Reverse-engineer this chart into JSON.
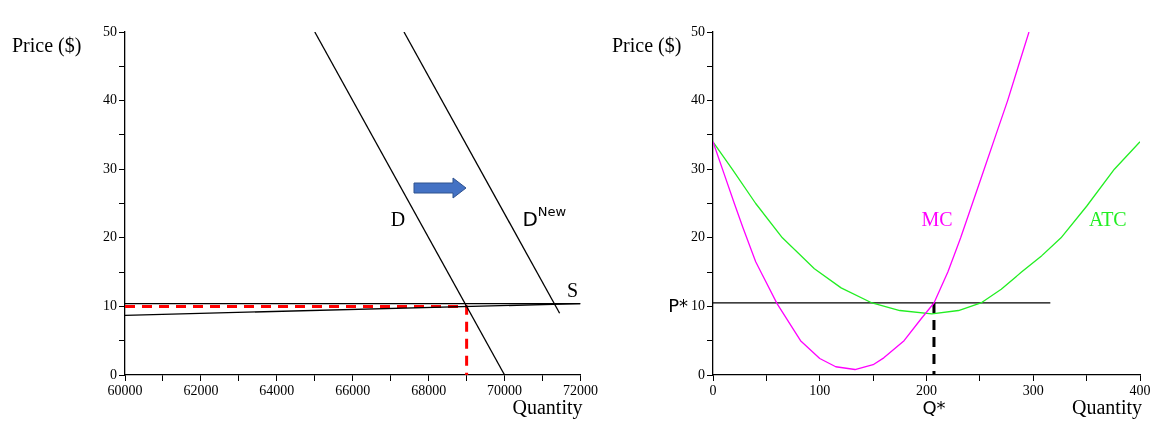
{
  "chart_data": [
    {
      "type": "line",
      "xlabel": "Quantity",
      "ylabel": "Price ($)",
      "marker": "none",
      "xlim": [
        60000,
        72000
      ],
      "ylim": [
        0,
        50
      ],
      "xticks": [
        60000,
        {
          "value": 61000,
          "label": null
        },
        62000,
        {
          "value": 63000,
          "label": null
        },
        64000,
        {
          "value": 65000,
          "label": null
        },
        66000,
        {
          "value": 67000,
          "label": null
        },
        68000,
        {
          "value": 69000,
          "label": null
        },
        70000,
        {
          "value": 71000,
          "label": null
        },
        72000
      ],
      "yticks": [
        0,
        {
          "value": 5,
          "label": null
        },
        10,
        {
          "value": 15,
          "label": null
        },
        20,
        {
          "value": 25,
          "label": null
        },
        30,
        {
          "value": 35,
          "label": null
        },
        40,
        {
          "value": 45,
          "label": null
        },
        50
      ],
      "series": [
        {
          "name": "D",
          "color": "#000000",
          "x": [
            65000,
            70000
          ],
          "values": [
            50,
            0
          ]
        },
        {
          "name": "D$^{New}$",
          "color": "#000000",
          "x": [
            67350,
            71450
          ],
          "values": [
            50,
            9
          ]
        },
        {
          "name": "S",
          "color": "#000000",
          "x": [
            60000,
            72000
          ],
          "values": [
            8.7,
            10.4
          ]
        },
        {
          "color": "#000000",
          "x": [
            60000,
            72000
          ],
          "values": [
            10.4,
            10.4
          ]
        },
        {
          "color": "#ff0000",
          "line_style": "dashed",
          "x": [
            60000,
            69000,
            69000
          ],
          "values": [
            10,
            10,
            0
          ]
        }
      ]
    },
    {
      "type": "line",
      "xlabel": "Quantity",
      "ylabel": "Price ($)",
      "marker": "none",
      "xlim": [
        0,
        400
      ],
      "ylim": [
        0,
        50
      ],
      "xticks": [
        0,
        {
          "value": 50,
          "label": null
        },
        100,
        {
          "value": 150,
          "label": null
        },
        200,
        {
          "value": 250,
          "label": null
        },
        300,
        {
          "value": 350,
          "label": null
        },
        400
      ],
      "yticks": [
        0,
        {
          "value": 5,
          "label": null
        },
        10,
        {
          "value": 15,
          "label": null
        },
        20,
        {
          "value": 25,
          "label": null
        },
        30,
        {
          "value": 35,
          "label": null
        },
        40,
        {
          "value": 45,
          "label": null
        },
        50
      ],
      "series": [
        {
          "name": "MC",
          "color": "#ff00ff",
          "x": [
            0,
            10,
            20,
            28,
            40,
            60,
            82,
            100,
            115,
            133,
            150,
            160,
            179,
            195,
            207,
            220,
            232,
            243,
            254,
            265,
            276,
            286,
            296
          ],
          "values": [
            34,
            29.5,
            25,
            21.5,
            16.5,
            10.4,
            5,
            2.4,
            1.2,
            0.8,
            1.5,
            2.5,
            5,
            8.2,
            10.5,
            15,
            20,
            25,
            30,
            35,
            40,
            45,
            50
          ]
        },
        {
          "name": "ATC",
          "color": "#22ee22",
          "x": [
            0,
            18,
            40,
            65,
            95,
            120,
            149,
            175,
            205,
            230,
            251,
            270,
            289,
            308,
            326,
            350,
            376,
            400
          ],
          "values": [
            34,
            30,
            25,
            20,
            15.5,
            12.7,
            10.5,
            9.4,
            8.9,
            9.4,
            10.5,
            12.5,
            15,
            17.4,
            20,
            24.6,
            30,
            34
          ]
        },
        {
          "color": "#000000",
          "x": [
            0,
            316
          ],
          "values": [
            10.5,
            10.5
          ]
        },
        {
          "color": "#000000",
          "line_style": "dashed",
          "x": [
            207,
            207
          ],
          "values": [
            10.5,
            0
          ]
        }
      ],
      "annotations": [
        {
          "text": "P*",
          "x": 0,
          "y": 10.5
        },
        {
          "text": "Q*",
          "x": 207,
          "y": 0
        }
      ]
    }
  ]
}
